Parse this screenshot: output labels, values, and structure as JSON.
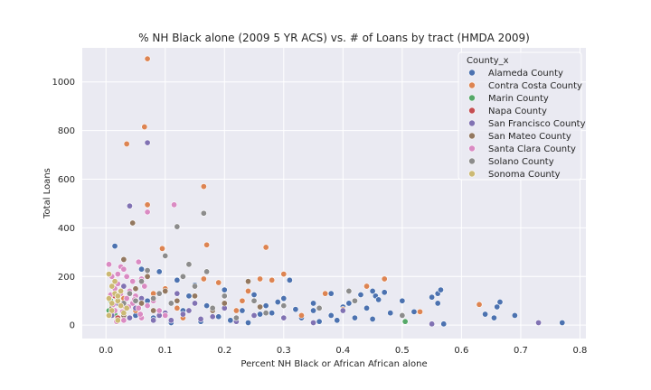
{
  "chart_data": {
    "type": "scatter",
    "title": "% NH Black alone (2009 5 YR ACS) vs. # of Loans by tract (HMDA 2009)",
    "xlabel": "Percent NH Black or African African alone",
    "ylabel": "Total Loans",
    "xlim": [
      -0.04,
      0.81
    ],
    "ylim": [
      -55,
      1140
    ],
    "x_ticks": [
      0.0,
      0.1,
      0.2,
      0.3,
      0.4,
      0.5,
      0.6,
      0.7,
      0.8
    ],
    "y_ticks": [
      0,
      200,
      400,
      600,
      800,
      1000
    ],
    "grid": true,
    "legend": {
      "title": "County_x",
      "placement": "top-right"
    },
    "series": [
      {
        "name": "Alameda County",
        "color": "#4c72b0",
        "points": [
          [
            0.015,
            325
          ],
          [
            0.06,
            230
          ],
          [
            0.09,
            220
          ],
          [
            0.12,
            185
          ],
          [
            0.15,
            165
          ],
          [
            0.2,
            145
          ],
          [
            0.25,
            125
          ],
          [
            0.3,
            110
          ],
          [
            0.35,
            90
          ],
          [
            0.4,
            75
          ],
          [
            0.45,
            140
          ],
          [
            0.455,
            120
          ],
          [
            0.46,
            105
          ],
          [
            0.47,
            135
          ],
          [
            0.5,
            100
          ],
          [
            0.55,
            115
          ],
          [
            0.56,
            130
          ],
          [
            0.565,
            145
          ],
          [
            0.56,
            90
          ],
          [
            0.57,
            5
          ],
          [
            0.64,
            45
          ],
          [
            0.655,
            30
          ],
          [
            0.66,
            75
          ],
          [
            0.665,
            95
          ],
          [
            0.69,
            40
          ],
          [
            0.77,
            10
          ],
          [
            0.35,
            60
          ],
          [
            0.38,
            40
          ],
          [
            0.42,
            30
          ],
          [
            0.43,
            125
          ],
          [
            0.38,
            130
          ],
          [
            0.31,
            185
          ],
          [
            0.29,
            95
          ],
          [
            0.27,
            80
          ],
          [
            0.23,
            60
          ],
          [
            0.22,
            30
          ],
          [
            0.21,
            20
          ],
          [
            0.24,
            10
          ],
          [
            0.26,
            45
          ],
          [
            0.28,
            50
          ],
          [
            0.33,
            30
          ],
          [
            0.36,
            15
          ],
          [
            0.39,
            20
          ],
          [
            0.41,
            90
          ],
          [
            0.44,
            70
          ],
          [
            0.48,
            50
          ],
          [
            0.45,
            25
          ],
          [
            0.52,
            55
          ],
          [
            0.05,
            40
          ],
          [
            0.08,
            30
          ],
          [
            0.1,
            50
          ],
          [
            0.13,
            60
          ],
          [
            0.17,
            80
          ],
          [
            0.19,
            35
          ],
          [
            0.16,
            15
          ],
          [
            0.11,
            10
          ],
          [
            0.07,
            100
          ],
          [
            0.14,
            120
          ],
          [
            0.18,
            70
          ],
          [
            0.32,
            65
          ]
        ]
      },
      {
        "name": "Contra Costa County",
        "color": "#dd8452",
        "points": [
          [
            0.07,
            1095
          ],
          [
            0.065,
            815
          ],
          [
            0.035,
            745
          ],
          [
            0.165,
            570
          ],
          [
            0.07,
            495
          ],
          [
            0.095,
            315
          ],
          [
            0.17,
            330
          ],
          [
            0.27,
            320
          ],
          [
            0.3,
            210
          ],
          [
            0.165,
            190
          ],
          [
            0.19,
            175
          ],
          [
            0.26,
            190
          ],
          [
            0.28,
            185
          ],
          [
            0.24,
            140
          ],
          [
            0.37,
            130
          ],
          [
            0.44,
            160
          ],
          [
            0.47,
            190
          ],
          [
            0.63,
            85
          ],
          [
            0.4,
            65
          ],
          [
            0.33,
            40
          ],
          [
            0.53,
            55
          ],
          [
            0.2,
            120
          ],
          [
            0.23,
            100
          ],
          [
            0.15,
            90
          ],
          [
            0.12,
            70
          ],
          [
            0.1,
            150
          ],
          [
            0.05,
            60
          ],
          [
            0.03,
            110
          ],
          [
            0.02,
            90
          ],
          [
            0.08,
            130
          ],
          [
            0.13,
            30
          ],
          [
            0.22,
            60
          ]
        ]
      },
      {
        "name": "Marin County",
        "color": "#55a868",
        "points": [
          [
            0.505,
            15
          ],
          [
            0.005,
            60
          ],
          [
            0.01,
            80
          ],
          [
            0.015,
            45
          ],
          [
            0.008,
            100
          ]
        ]
      },
      {
        "name": "Napa County",
        "color": "#c44e52",
        "points": [
          [
            0.01,
            55
          ],
          [
            0.02,
            30
          ],
          [
            0.03,
            80
          ],
          [
            0.015,
            120
          ]
        ]
      },
      {
        "name": "San Francisco County",
        "color": "#8172b3",
        "points": [
          [
            0.07,
            750
          ],
          [
            0.04,
            490
          ],
          [
            0.73,
            10
          ],
          [
            0.55,
            5
          ],
          [
            0.4,
            60
          ],
          [
            0.35,
            10
          ],
          [
            0.25,
            40
          ],
          [
            0.2,
            70
          ],
          [
            0.15,
            90
          ],
          [
            0.12,
            130
          ],
          [
            0.1,
            50
          ],
          [
            0.08,
            20
          ],
          [
            0.06,
            110
          ],
          [
            0.05,
            70
          ],
          [
            0.03,
            160
          ],
          [
            0.02,
            90
          ],
          [
            0.01,
            40
          ],
          [
            0.04,
            30
          ],
          [
            0.09,
            40
          ],
          [
            0.11,
            20
          ],
          [
            0.13,
            45
          ],
          [
            0.14,
            60
          ],
          [
            0.16,
            25
          ],
          [
            0.18,
            35
          ],
          [
            0.22,
            15
          ],
          [
            0.3,
            30
          ]
        ]
      },
      {
        "name": "San Mateo County",
        "color": "#937860",
        "points": [
          [
            0.045,
            420
          ],
          [
            0.03,
            270
          ],
          [
            0.07,
            200
          ],
          [
            0.24,
            180
          ],
          [
            0.2,
            90
          ],
          [
            0.15,
            120
          ],
          [
            0.1,
            140
          ],
          [
            0.08,
            60
          ],
          [
            0.06,
            90
          ],
          [
            0.05,
            150
          ],
          [
            0.02,
            110
          ],
          [
            0.01,
            70
          ],
          [
            0.03,
            40
          ],
          [
            0.12,
            100
          ],
          [
            0.18,
            60
          ],
          [
            0.26,
            75
          ]
        ]
      },
      {
        "name": "Santa Clara County",
        "color": "#da8bc3",
        "points": [
          [
            0.115,
            495
          ],
          [
            0.07,
            465
          ],
          [
            0.005,
            250
          ],
          [
            0.025,
            240
          ],
          [
            0.055,
            260
          ],
          [
            0.035,
            200
          ],
          [
            0.045,
            180
          ],
          [
            0.065,
            160
          ],
          [
            0.015,
            150
          ],
          [
            0.025,
            130
          ],
          [
            0.035,
            110
          ],
          [
            0.045,
            90
          ],
          [
            0.055,
            70
          ],
          [
            0.015,
            60
          ],
          [
            0.005,
            40
          ],
          [
            0.03,
            20
          ],
          [
            0.06,
            30
          ],
          [
            0.08,
            100
          ],
          [
            0.02,
            170
          ],
          [
            0.01,
            200
          ],
          [
            0.04,
            140
          ],
          [
            0.05,
            120
          ],
          [
            0.07,
            80
          ],
          [
            0.09,
            60
          ],
          [
            0.1,
            40
          ],
          [
            0.03,
            230
          ],
          [
            0.02,
            210
          ],
          [
            0.06,
            190
          ],
          [
            0.012,
            85
          ],
          [
            0.028,
            55
          ],
          [
            0.038,
            75
          ],
          [
            0.048,
            105
          ],
          [
            0.058,
            45
          ],
          [
            0.018,
            15
          ],
          [
            0.008,
            125
          ]
        ]
      },
      {
        "name": "Solano County",
        "color": "#8c8c8c",
        "points": [
          [
            0.12,
            405
          ],
          [
            0.165,
            460
          ],
          [
            0.1,
            285
          ],
          [
            0.14,
            250
          ],
          [
            0.07,
            225
          ],
          [
            0.06,
            180
          ],
          [
            0.13,
            200
          ],
          [
            0.17,
            220
          ],
          [
            0.15,
            160
          ],
          [
            0.2,
            120
          ],
          [
            0.25,
            100
          ],
          [
            0.3,
            80
          ],
          [
            0.36,
            70
          ],
          [
            0.41,
            140
          ],
          [
            0.42,
            100
          ],
          [
            0.5,
            40
          ],
          [
            0.27,
            50
          ],
          [
            0.22,
            30
          ],
          [
            0.18,
            70
          ],
          [
            0.11,
            90
          ],
          [
            0.09,
            130
          ],
          [
            0.08,
            110
          ],
          [
            0.05,
            100
          ],
          [
            0.04,
            130
          ],
          [
            0.03,
            90
          ]
        ]
      },
      {
        "name": "Sonoma County",
        "color": "#ccb974",
        "points": [
          [
            0.005,
            210
          ],
          [
            0.01,
            160
          ],
          [
            0.015,
            130
          ],
          [
            0.02,
            100
          ],
          [
            0.025,
            80
          ],
          [
            0.01,
            60
          ],
          [
            0.005,
            40
          ],
          [
            0.02,
            20
          ],
          [
            0.03,
            50
          ],
          [
            0.015,
            180
          ],
          [
            0.025,
            140
          ],
          [
            0.035,
            70
          ],
          [
            0.005,
            110
          ],
          [
            0.01,
            90
          ],
          [
            0.02,
            120
          ]
        ]
      }
    ]
  }
}
